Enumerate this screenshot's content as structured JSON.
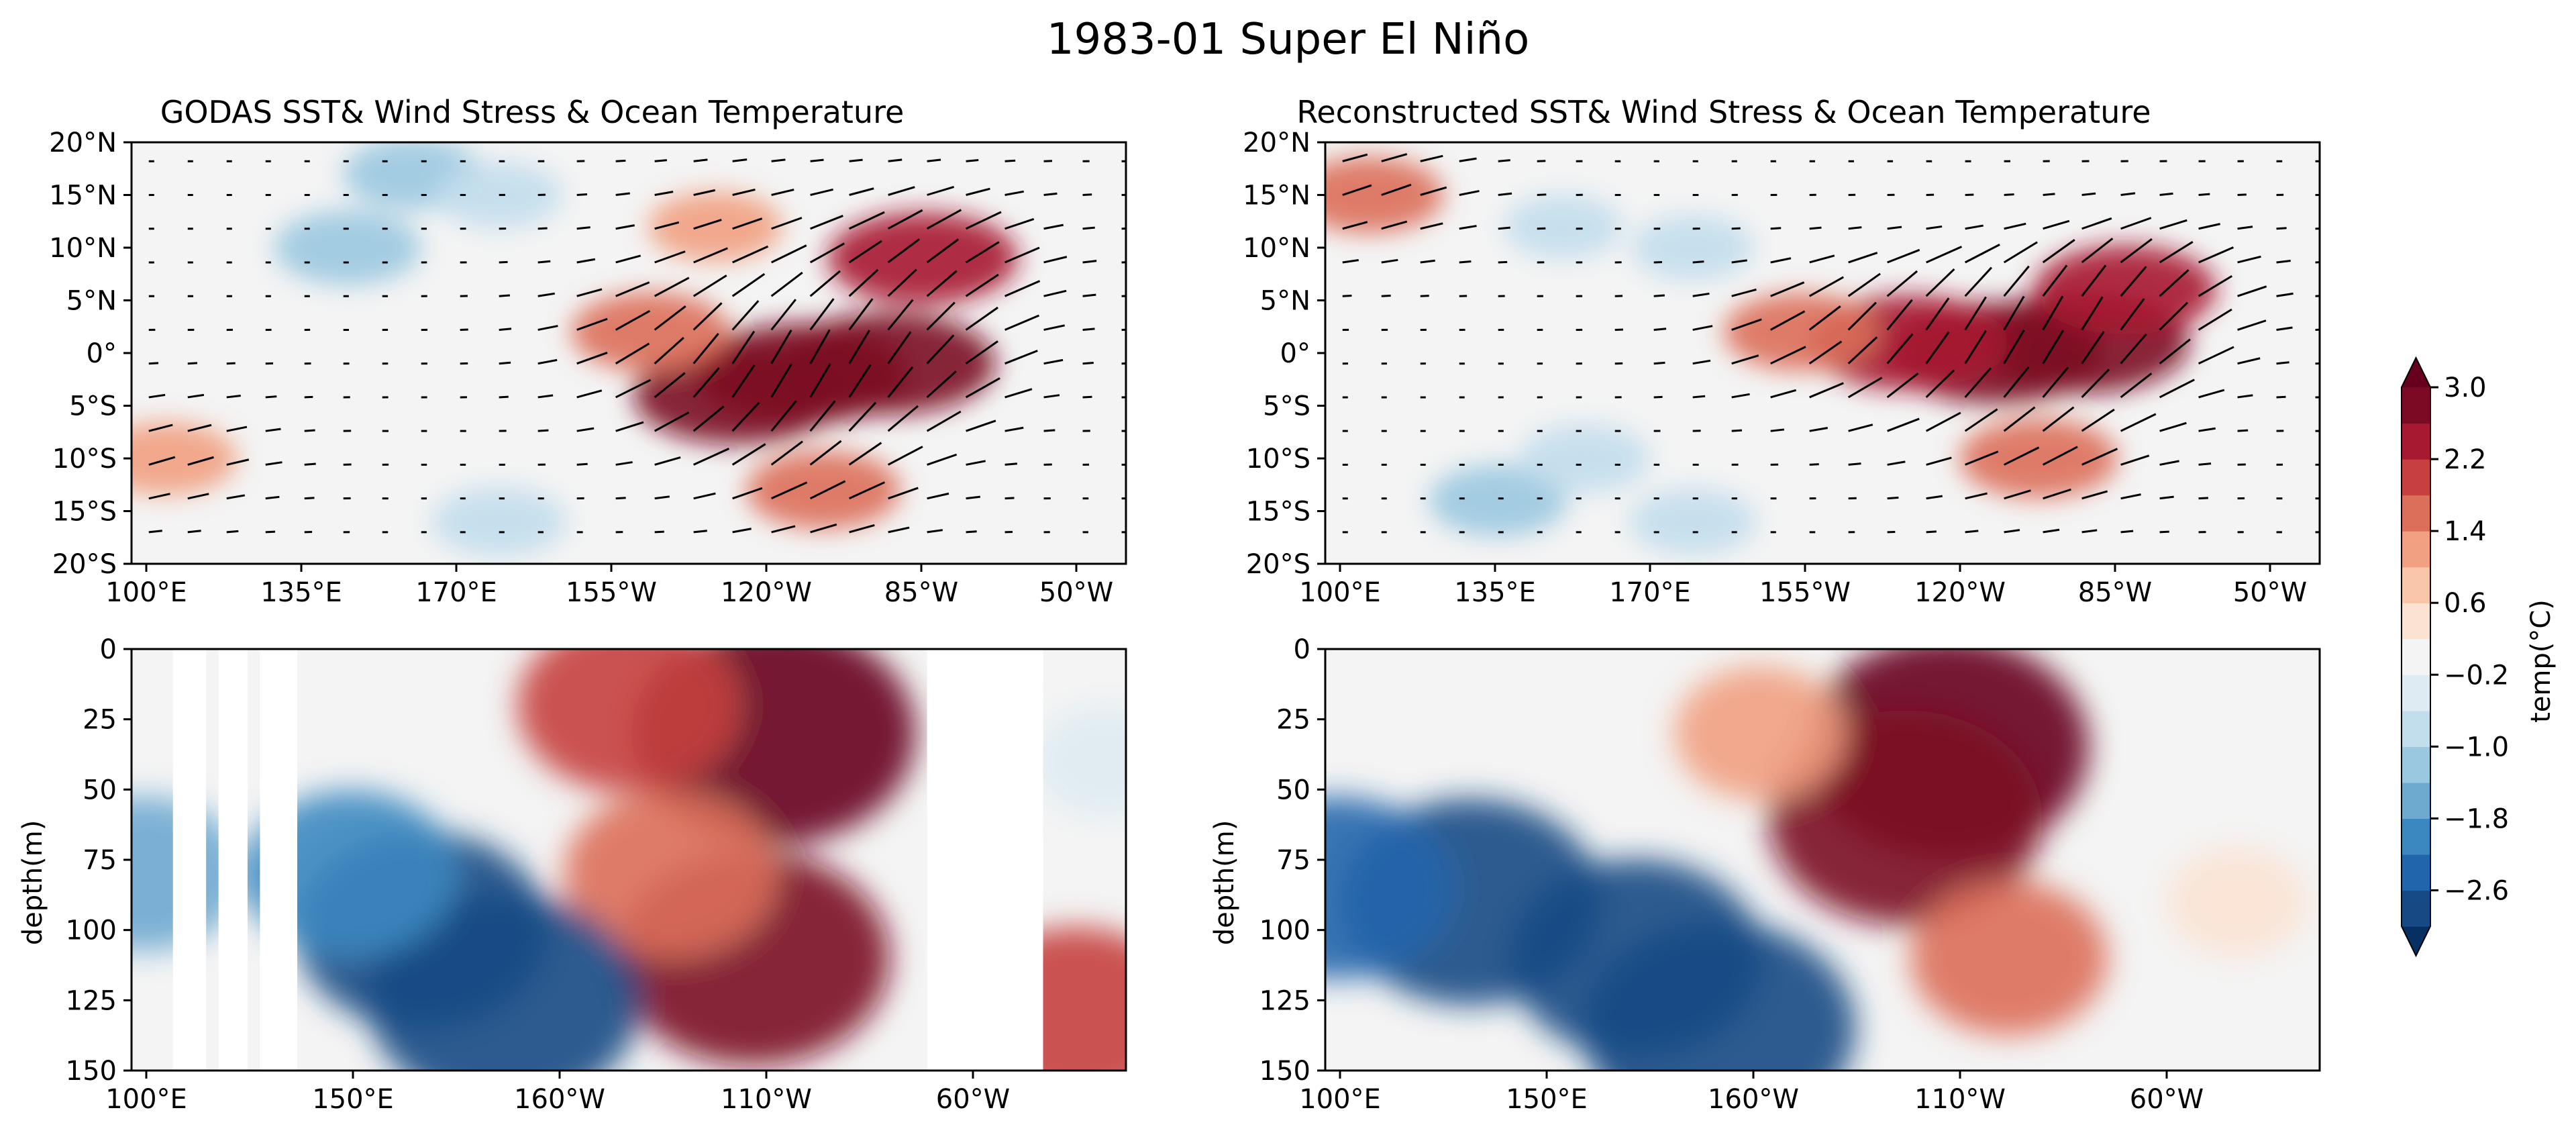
{
  "figure": {
    "title": "1983-01 Super El Niño"
  },
  "colorbar": {
    "label": "temp(°C)",
    "ticks": [
      "3.0",
      "2.2",
      "1.4",
      "0.6",
      "−0.2",
      "−1.0",
      "−1.8",
      "−2.6"
    ],
    "tick_values": [
      3.0,
      2.2,
      1.4,
      0.6,
      -0.2,
      -1.0,
      -1.8,
      -2.6
    ],
    "range": [
      -3.0,
      3.0
    ],
    "extend": "both",
    "colors": [
      "#053061",
      "#174a84",
      "#2166ac",
      "#3b88c0",
      "#6ea9d0",
      "#9ac8e0",
      "#c2ddec",
      "#deebf2",
      "#f4f4f4",
      "#fbe3d4",
      "#f9c6a9",
      "#f1a081",
      "#dc6f5a",
      "#c5403f",
      "#a71930",
      "#7c0a24",
      "#67001f"
    ]
  },
  "chart_data": [
    {
      "type": "heatmap",
      "panel": "top-left",
      "title": "GODAS SST& Wind Stress & Ocean Temperature",
      "xticks": [
        "100°E",
        "135°E",
        "170°E",
        "155°W",
        "120°W",
        "85°W",
        "50°W"
      ],
      "yticks": [
        "20°N",
        "15°N",
        "10°N",
        "5°N",
        "0°",
        "5°S",
        "10°S",
        "15°S",
        "20°S"
      ],
      "xlim_lon_east": [
        90,
        320
      ],
      "ylim_lat": [
        -20,
        20
      ],
      "overlay": "wind stress vectors, coastlines",
      "anomaly_features": [
        {
          "lon": 245,
          "lat": -2,
          "value": 3.0
        },
        {
          "lon": 265,
          "lat": -1,
          "value": 3.0
        },
        {
          "lon": 230,
          "lat": -4,
          "value": 2.8
        },
        {
          "lon": 273,
          "lat": 9,
          "value": 2.4
        },
        {
          "lon": 210,
          "lat": 2,
          "value": 1.6
        },
        {
          "lon": 250,
          "lat": -13,
          "value": 1.5
        },
        {
          "lon": 140,
          "lat": 10,
          "value": -1.3
        },
        {
          "lon": 155,
          "lat": 17,
          "value": -1.1
        },
        {
          "lon": 175,
          "lat": 15,
          "value": -0.8
        },
        {
          "lon": 175,
          "lat": -16,
          "value": -1.0
        },
        {
          "lon": 98,
          "lat": -10,
          "value": 1.2
        },
        {
          "lon": 225,
          "lat": 12,
          "value": 1.0
        }
      ]
    },
    {
      "type": "heatmap",
      "panel": "top-right",
      "title": "Reconstructed SST& Wind Stress & Ocean Temperature",
      "xticks": [
        "100°E",
        "135°E",
        "170°E",
        "155°W",
        "120°W",
        "85°W",
        "50°W"
      ],
      "yticks": [
        "20°N",
        "15°N",
        "10°N",
        "5°N",
        "0°",
        "5°S",
        "10°S",
        "15°S",
        "20°S"
      ],
      "xlim_lon_east": [
        90,
        320
      ],
      "ylim_lat": [
        -20,
        20
      ],
      "overlay": "wind stress vectors, coastlines",
      "anomaly_features": [
        {
          "lon": 245,
          "lat": 0,
          "value": 3.0
        },
        {
          "lon": 265,
          "lat": 1,
          "value": 3.0
        },
        {
          "lon": 225,
          "lat": 1,
          "value": 2.6
        },
        {
          "lon": 275,
          "lat": 6,
          "value": 2.2
        },
        {
          "lon": 200,
          "lat": 2,
          "value": 1.5
        },
        {
          "lon": 255,
          "lat": -10,
          "value": 1.6
        },
        {
          "lon": 100,
          "lat": 15,
          "value": 1.4
        },
        {
          "lon": 130,
          "lat": -14,
          "value": -1.1
        },
        {
          "lon": 150,
          "lat": -10,
          "value": -0.9
        },
        {
          "lon": 145,
          "lat": 12,
          "value": -0.6
        },
        {
          "lon": 175,
          "lat": 10,
          "value": -0.7
        },
        {
          "lon": 175,
          "lat": -16,
          "value": -0.8
        }
      ]
    },
    {
      "type": "heatmap",
      "panel": "bottom-left",
      "title": "",
      "xticks": [
        "100°E",
        "150°E",
        "160°W",
        "110°W",
        "60°W"
      ],
      "yticks": [
        "0",
        "25",
        "50",
        "75",
        "100",
        "125",
        "150"
      ],
      "ylabel": "depth(m)",
      "xlim_lon_east": [
        90,
        330
      ],
      "ylim_depth": [
        150,
        0
      ],
      "masked_lon_ranges": [
        [
          100,
          108
        ],
        [
          111,
          118
        ],
        [
          121,
          130
        ],
        [
          282,
          310
        ]
      ],
      "anomaly_features": [
        {
          "lon": 245,
          "depth": 30,
          "value": 3.2
        },
        {
          "lon": 240,
          "depth": 110,
          "value": 3.0
        },
        {
          "lon": 210,
          "depth": 20,
          "value": 2.0
        },
        {
          "lon": 220,
          "depth": 80,
          "value": 1.8
        },
        {
          "lon": 180,
          "depth": 125,
          "value": -3.0
        },
        {
          "lon": 160,
          "depth": 100,
          "value": -2.6
        },
        {
          "lon": 143,
          "depth": 80,
          "value": -1.8
        },
        {
          "lon": 93,
          "depth": 80,
          "value": -1.5
        },
        {
          "lon": 318,
          "depth": 130,
          "value": 2.0
        },
        {
          "lon": 325,
          "depth": 40,
          "value": -0.4
        }
      ]
    },
    {
      "type": "heatmap",
      "panel": "bottom-right",
      "title": "",
      "xticks": [
        "100°E",
        "150°E",
        "160°W",
        "110°W",
        "60°W"
      ],
      "yticks": [
        "0",
        "25",
        "50",
        "75",
        "100",
        "125",
        "150"
      ],
      "ylabel": "depth(m)",
      "xlim_lon_east": [
        90,
        330
      ],
      "ylim_depth": [
        150,
        0
      ],
      "anomaly_features": [
        {
          "lon": 240,
          "depth": 35,
          "value": 3.2
        },
        {
          "lon": 230,
          "depth": 60,
          "value": 3.0
        },
        {
          "lon": 255,
          "depth": 110,
          "value": 1.5
        },
        {
          "lon": 195,
          "depth": 30,
          "value": 1.0
        },
        {
          "lon": 185,
          "depth": 135,
          "value": -3.0
        },
        {
          "lon": 165,
          "depth": 110,
          "value": -2.6
        },
        {
          "lon": 125,
          "depth": 90,
          "value": -2.8
        },
        {
          "lon": 93,
          "depth": 85,
          "value": -2.2
        },
        {
          "lon": 310,
          "depth": 90,
          "value": 0.4
        }
      ]
    }
  ]
}
